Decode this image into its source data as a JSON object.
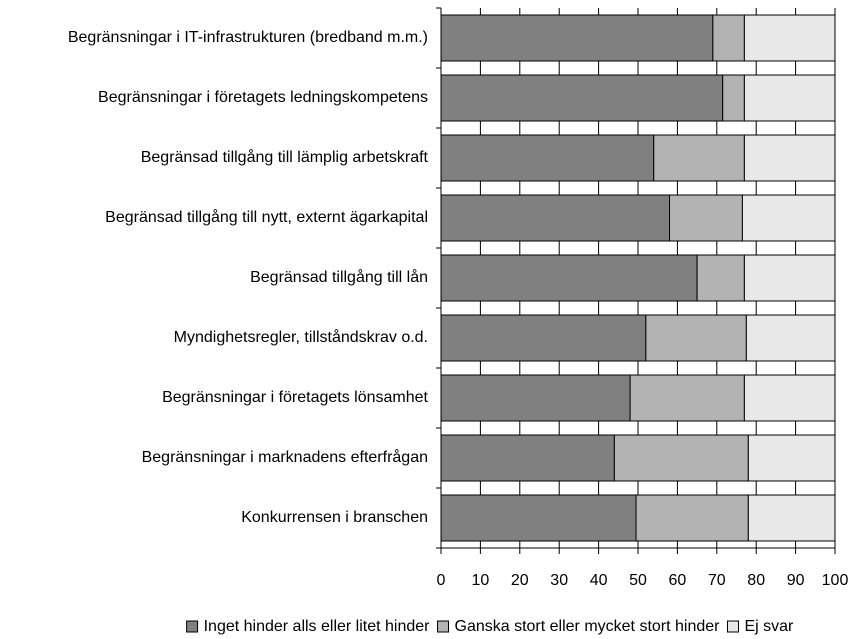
{
  "chart_data": {
    "type": "stacked-barh",
    "categories": [
      "Begränsningar i IT-infrastrukturen (bredband m.m.)",
      "Begränsningar i företagets ledningskompetens",
      "Begränsad tillgång till lämplig arbetskraft",
      "Begränsad tillgång till nytt, externt ägarkapital",
      "Begränsad tillgång till lån",
      "Myndighetsregler, tillståndskrav o.d.",
      "Begränsningar i företagets lönsamhet",
      "Begränsningar i marknadens efterfrågan",
      "Konkurrensen i branschen"
    ],
    "series": [
      {
        "name": "Inget hinder alls eller litet hinder",
        "color": "#808080",
        "values": [
          69,
          71.5,
          54,
          58,
          65,
          52,
          48,
          44,
          49.5
        ]
      },
      {
        "name": "Ganska stort eller mycket stort hinder",
        "color": "#b3b3b3",
        "values": [
          8,
          5.5,
          23,
          18.5,
          12,
          25.5,
          29,
          34,
          28.5
        ]
      },
      {
        "name": "Ej svar",
        "color": "#e8e8e8",
        "values": [
          23,
          23,
          23,
          23.5,
          23,
          22.5,
          23,
          22,
          22
        ]
      }
    ],
    "xlim": [
      0,
      100
    ],
    "xticks": [
      0,
      10,
      20,
      30,
      40,
      50,
      60,
      70,
      80,
      90,
      100
    ],
    "grid": true,
    "legend": "bottom"
  }
}
